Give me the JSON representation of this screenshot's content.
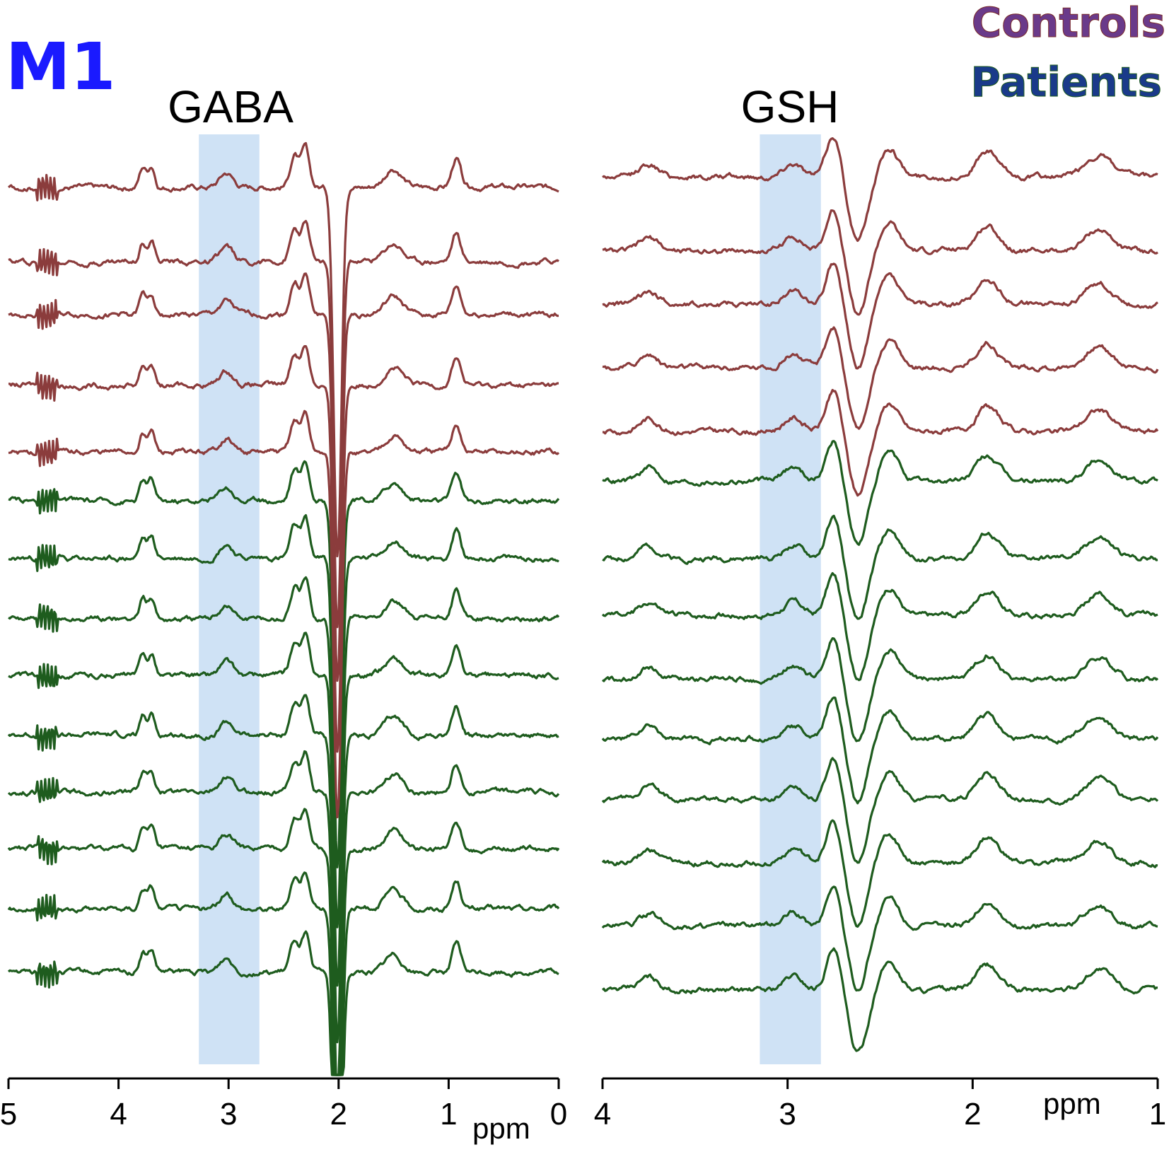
{
  "panel_label": "M1",
  "legend": {
    "controls": "Controls",
    "patients": "Patients"
  },
  "colors": {
    "controls": "#8b3c3c",
    "patients": "#1e5c1e",
    "highlight": "#cfe2f5",
    "panel_label": "#1a1aff",
    "legend_controls": "#7a3a7a",
    "legend_patients": "#1a4e7a"
  },
  "chart_data": [
    {
      "type": "line",
      "title": "GABA",
      "xlabel": "ppm",
      "xlim": [
        5,
        0
      ],
      "xticks": [
        5,
        4,
        3,
        2,
        1,
        0
      ],
      "xtick_labels": [
        "5",
        "4",
        "3",
        "2",
        "1",
        "0"
      ],
      "highlight_range": [
        3.27,
        2.72
      ],
      "series_groups": [
        {
          "name": "Controls",
          "count": 5
        },
        {
          "name": "Patients",
          "count": 9
        }
      ]
    },
    {
      "type": "line",
      "title": "GSH",
      "xlabel": "ppm",
      "xlim": [
        4,
        1
      ],
      "xticks": [
        4,
        3,
        2,
        1
      ],
      "xtick_labels": [
        "4",
        "3",
        "2",
        "1"
      ],
      "highlight_range": [
        3.15,
        2.82
      ],
      "series_groups": [
        {
          "name": "Controls",
          "count": 5
        },
        {
          "name": "Patients",
          "count": 9
        }
      ]
    }
  ]
}
